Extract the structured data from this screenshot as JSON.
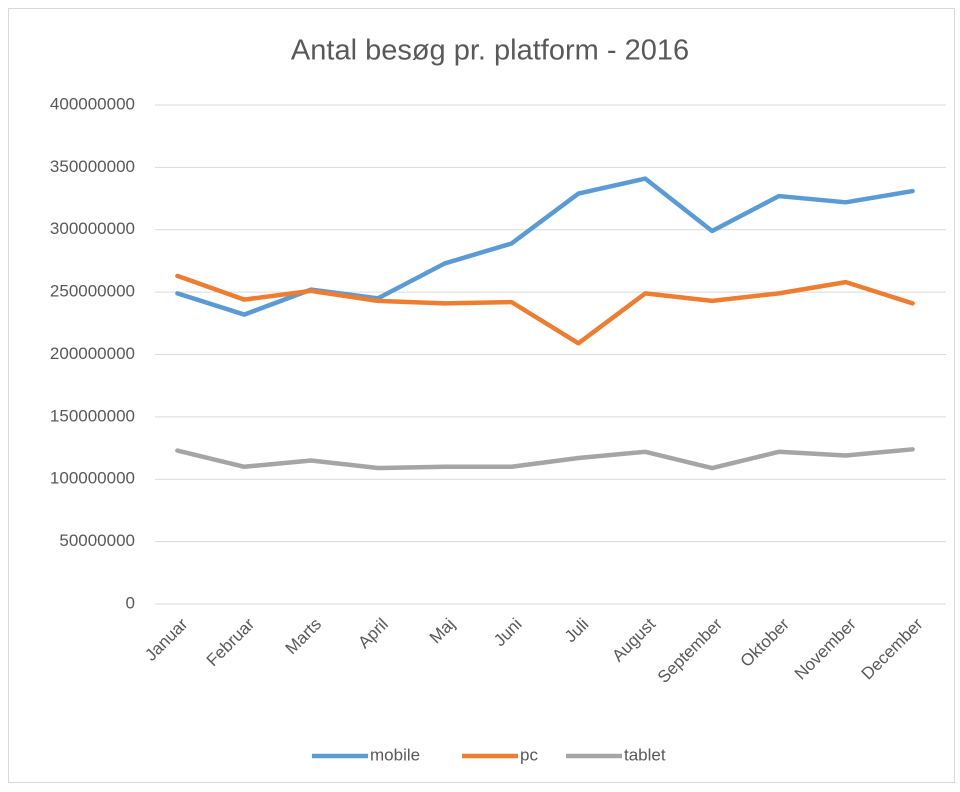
{
  "chart_data": {
    "type": "line",
    "title": "Antal besøg pr. platform - 2016",
    "categories": [
      "Januar",
      "Februar",
      "Marts",
      "April",
      "Maj",
      "Juni",
      "Juli",
      "August",
      "September",
      "Oktober",
      "November",
      "December"
    ],
    "series": [
      {
        "name": "mobile",
        "color": "#5b9bd5",
        "values": [
          249000000,
          232000000,
          252000000,
          245000000,
          273000000,
          289000000,
          329000000,
          341000000,
          299000000,
          327000000,
          322000000,
          331000000
        ]
      },
      {
        "name": "pc",
        "color": "#ed7d31",
        "values": [
          263000000,
          244000000,
          251000000,
          243000000,
          241000000,
          242000000,
          209000000,
          249000000,
          243000000,
          249000000,
          258000000,
          241000000
        ]
      },
      {
        "name": "tablet",
        "color": "#a5a5a5",
        "values": [
          123000000,
          110000000,
          115000000,
          109000000,
          110000000,
          110000000,
          117000000,
          122000000,
          109000000,
          122000000,
          119000000,
          124000000
        ]
      }
    ],
    "ylim": [
      0,
      400000000
    ],
    "yticks": [
      0,
      50000000,
      100000000,
      150000000,
      200000000,
      250000000,
      300000000,
      350000000,
      400000000
    ],
    "grid": true,
    "legend": "bottom"
  }
}
